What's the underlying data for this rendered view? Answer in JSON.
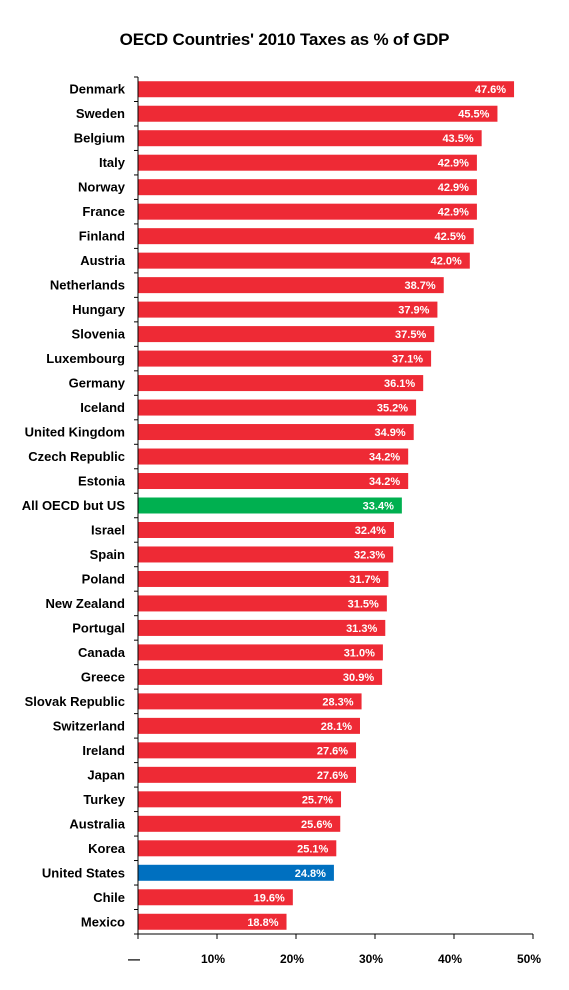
{
  "chart_data": {
    "type": "bar",
    "orientation": "horizontal",
    "title": "OECD Countries' 2010 Taxes as % of GDP",
    "xlabel": "",
    "ylabel": "",
    "xlim": [
      0,
      50
    ],
    "xticks": [
      0,
      10,
      20,
      30,
      40,
      50
    ],
    "xtick_labels": [
      "—",
      "10%",
      "20%",
      "30%",
      "40%",
      "50%"
    ],
    "grid": false,
    "legend": "none",
    "colors": {
      "default": "#ee2a35",
      "oecd_avg": "#00b050",
      "united_states": "#0070c0"
    },
    "categories": [
      "Denmark",
      "Sweden",
      "Belgium",
      "Italy",
      "Norway",
      "France",
      "Finland",
      "Austria",
      "Netherlands",
      "Hungary",
      "Slovenia",
      "Luxembourg",
      "Germany",
      "Iceland",
      "United Kingdom",
      "Czech Republic",
      "Estonia",
      "All OECD but US",
      "Israel",
      "Spain",
      "Poland",
      "New Zealand",
      "Portugal",
      "Canada",
      "Greece",
      "Slovak Republic",
      "Switzerland",
      "Ireland",
      "Japan",
      "Turkey",
      "Australia",
      "Korea",
      "United States",
      "Chile",
      "Mexico"
    ],
    "values": [
      47.6,
      45.5,
      43.5,
      42.9,
      42.9,
      42.9,
      42.5,
      42.0,
      38.7,
      37.9,
      37.5,
      37.1,
      36.1,
      35.2,
      34.9,
      34.2,
      34.2,
      33.4,
      32.4,
      32.3,
      31.7,
      31.5,
      31.3,
      31.0,
      30.9,
      28.3,
      28.1,
      27.6,
      27.6,
      25.7,
      25.6,
      25.1,
      24.8,
      19.6,
      18.8
    ],
    "value_labels": [
      "47.6%",
      "45.5%",
      "43.5%",
      "42.9%",
      "42.9%",
      "42.9%",
      "42.5%",
      "42.0%",
      "38.7%",
      "37.9%",
      "37.5%",
      "37.1%",
      "36.1%",
      "35.2%",
      "34.9%",
      "34.2%",
      "34.2%",
      "33.4%",
      "32.4%",
      "32.3%",
      "31.7%",
      "31.5%",
      "31.3%",
      "31.0%",
      "30.9%",
      "28.3%",
      "28.1%",
      "27.6%",
      "27.6%",
      "25.7%",
      "25.6%",
      "25.1%",
      "24.8%",
      "19.6%",
      "18.8%"
    ],
    "bar_colors": [
      "default",
      "default",
      "default",
      "default",
      "default",
      "default",
      "default",
      "default",
      "default",
      "default",
      "default",
      "default",
      "default",
      "default",
      "default",
      "default",
      "default",
      "oecd_avg",
      "default",
      "default",
      "default",
      "default",
      "default",
      "default",
      "default",
      "default",
      "default",
      "default",
      "default",
      "default",
      "default",
      "default",
      "united_states",
      "default",
      "default"
    ]
  }
}
